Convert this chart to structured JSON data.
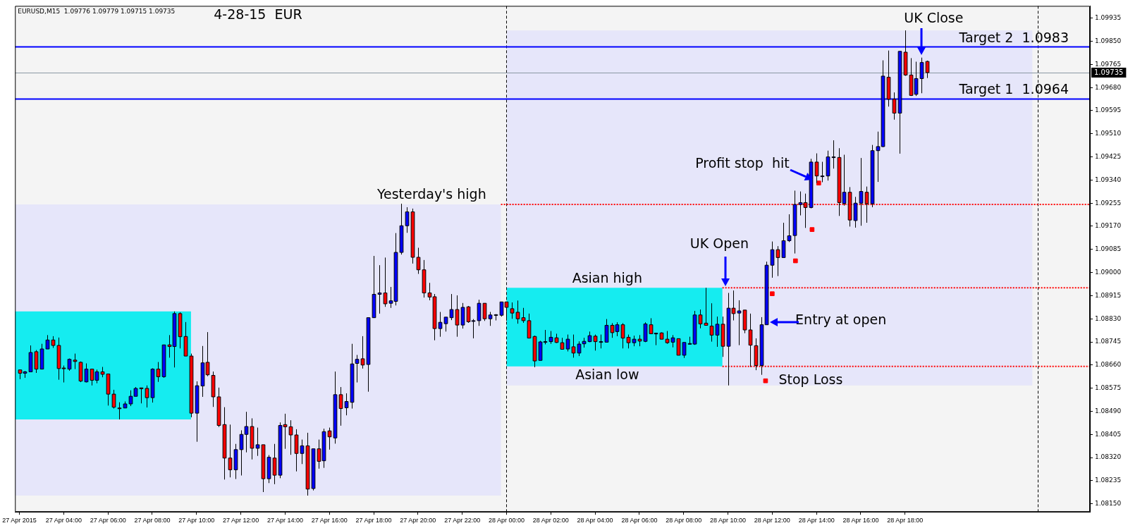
{
  "chart_data": {
    "type": "candlestick",
    "title": "4-28-15  EUR",
    "subtitle": "EURUSD,M15  1.09776 1.09779 1.09715 1.09735",
    "x": [
      "2015-04-27T02:00",
      "2015-04-27T02:15",
      "2015-04-27T02:30",
      "2015-04-27T02:45",
      "2015-04-27T03:00",
      "2015-04-27T03:15",
      "2015-04-27T03:30",
      "2015-04-27T03:45",
      "2015-04-27T04:00",
      "2015-04-27T04:15",
      "2015-04-27T04:30",
      "2015-04-27T04:45",
      "2015-04-27T05:00",
      "2015-04-27T05:15",
      "2015-04-27T05:30",
      "2015-04-27T05:45",
      "2015-04-27T06:00",
      "2015-04-27T06:15",
      "2015-04-27T06:30",
      "2015-04-27T06:45",
      "2015-04-27T07:00",
      "2015-04-27T07:15",
      "2015-04-27T07:30",
      "2015-04-27T07:45",
      "2015-04-27T08:00",
      "2015-04-27T08:15",
      "2015-04-27T08:30",
      "2015-04-27T08:45",
      "2015-04-27T09:00",
      "2015-04-27T09:15",
      "2015-04-27T09:30",
      "2015-04-27T09:45",
      "2015-04-27T10:00",
      "2015-04-27T10:15",
      "2015-04-27T10:30",
      "2015-04-27T10:45",
      "2015-04-27T11:00",
      "2015-04-27T11:15",
      "2015-04-27T11:30",
      "2015-04-27T11:45",
      "2015-04-27T12:00",
      "2015-04-27T12:15",
      "2015-04-27T12:30",
      "2015-04-27T12:45",
      "2015-04-27T13:00",
      "2015-04-27T13:15",
      "2015-04-27T13:30",
      "2015-04-27T13:45",
      "2015-04-27T14:00",
      "2015-04-27T14:15",
      "2015-04-27T14:30",
      "2015-04-27T14:45",
      "2015-04-27T15:00",
      "2015-04-27T15:15",
      "2015-04-27T15:30",
      "2015-04-27T15:45",
      "2015-04-27T16:00",
      "2015-04-27T16:15",
      "2015-04-27T16:30",
      "2015-04-27T16:45",
      "2015-04-27T17:00",
      "2015-04-27T17:15",
      "2015-04-27T17:30",
      "2015-04-27T17:45",
      "2015-04-27T18:00",
      "2015-04-27T18:15",
      "2015-04-27T18:30",
      "2015-04-27T18:45",
      "2015-04-27T19:00",
      "2015-04-27T19:15",
      "2015-04-27T19:30",
      "2015-04-27T19:45",
      "2015-04-27T20:00",
      "2015-04-27T20:15",
      "2015-04-27T20:30",
      "2015-04-27T20:45",
      "2015-04-27T21:00",
      "2015-04-27T21:15",
      "2015-04-27T21:30",
      "2015-04-27T21:45",
      "2015-04-27T22:00",
      "2015-04-27T22:15",
      "2015-04-27T22:30",
      "2015-04-27T22:45",
      "2015-04-27T23:00",
      "2015-04-27T23:15",
      "2015-04-27T23:30",
      "2015-04-27T23:45",
      "2015-04-28T00:00",
      "2015-04-28T00:15",
      "2015-04-28T00:30",
      "2015-04-28T00:45",
      "2015-04-28T01:00",
      "2015-04-28T01:15",
      "2015-04-28T01:30",
      "2015-04-28T01:45",
      "2015-04-28T02:00",
      "2015-04-28T02:15",
      "2015-04-28T02:30",
      "2015-04-28T02:45",
      "2015-04-28T03:00",
      "2015-04-28T03:15",
      "2015-04-28T03:30",
      "2015-04-28T03:45",
      "2015-04-28T04:00",
      "2015-04-28T04:15",
      "2015-04-28T04:30",
      "2015-04-28T04:45",
      "2015-04-28T05:00",
      "2015-04-28T05:15",
      "2015-04-28T05:30",
      "2015-04-28T05:45",
      "2015-04-28T06:00",
      "2015-04-28T06:15",
      "2015-04-28T06:30",
      "2015-04-28T06:45",
      "2015-04-28T07:00",
      "2015-04-28T07:15",
      "2015-04-28T07:30",
      "2015-04-28T07:45",
      "2015-04-28T08:00",
      "2015-04-28T08:15",
      "2015-04-28T08:30",
      "2015-04-28T08:45",
      "2015-04-28T09:00",
      "2015-04-28T09:15",
      "2015-04-28T09:30",
      "2015-04-28T09:45",
      "2015-04-28T10:00",
      "2015-04-28T10:15",
      "2015-04-28T10:30",
      "2015-04-28T10:45",
      "2015-04-28T11:00",
      "2015-04-28T11:15",
      "2015-04-28T11:30",
      "2015-04-28T11:45",
      "2015-04-28T12:00",
      "2015-04-28T12:15",
      "2015-04-28T12:30",
      "2015-04-28T12:45",
      "2015-04-28T13:00",
      "2015-04-28T13:15",
      "2015-04-28T13:30",
      "2015-04-28T13:45",
      "2015-04-28T14:00",
      "2015-04-28T14:15",
      "2015-04-28T14:30",
      "2015-04-28T14:45",
      "2015-04-28T15:00",
      "2015-04-28T15:15",
      "2015-04-28T15:30",
      "2015-04-28T15:45",
      "2015-04-28T16:00",
      "2015-04-28T16:15",
      "2015-04-28T16:30",
      "2015-04-28T16:45",
      "2015-04-28T17:00",
      "2015-04-28T17:15",
      "2015-04-28T17:30",
      "2015-04-28T17:45",
      "2015-04-28T18:00",
      "2015-04-28T18:15",
      "2015-04-28T18:30",
      "2015-04-28T18:45",
      "2015-04-28T19:00"
    ],
    "ohlc": [
      [
        1.08642,
        1.08642,
        1.08608,
        1.0863
      ],
      [
        1.0863,
        1.08638,
        1.08613,
        1.08635
      ],
      [
        1.08635,
        1.08732,
        1.08635,
        1.08706
      ],
      [
        1.08709,
        1.08715,
        1.08631,
        1.08645
      ],
      [
        1.08645,
        1.08738,
        1.08645,
        1.08719
      ],
      [
        1.08719,
        1.0877,
        1.08719,
        1.08752
      ],
      [
        1.08752,
        1.08766,
        1.08723,
        1.08732
      ],
      [
        1.08732,
        1.08761,
        1.08606,
        1.08647
      ],
      [
        1.08649,
        1.08658,
        1.08596,
        1.08647
      ],
      [
        1.08645,
        1.08684,
        1.08639,
        1.08681
      ],
      [
        1.08678,
        1.08702,
        1.08645,
        1.08673
      ],
      [
        1.0867,
        1.08673,
        1.08597,
        1.08601
      ],
      [
        1.08598,
        1.08666,
        1.08596,
        1.08645
      ],
      [
        1.08645,
        1.08645,
        1.08585,
        1.08604
      ],
      [
        1.08604,
        1.08643,
        1.08593,
        1.08635
      ],
      [
        1.08635,
        1.08653,
        1.08615,
        1.08626
      ],
      [
        1.08627,
        1.08627,
        1.08511,
        1.08553
      ],
      [
        1.08553,
        1.08569,
        1.085,
        1.08505
      ],
      [
        1.08502,
        1.08523,
        1.0846,
        1.085
      ],
      [
        1.08502,
        1.08526,
        1.08502,
        1.08517
      ],
      [
        1.08517,
        1.08567,
        1.08509,
        1.08545
      ],
      [
        1.08545,
        1.08579,
        1.08545,
        1.08574
      ],
      [
        1.08576,
        1.08576,
        1.08519,
        1.08573
      ],
      [
        1.08574,
        1.08585,
        1.08504,
        1.0854
      ],
      [
        1.0854,
        1.08648,
        1.08522,
        1.08645
      ],
      [
        1.08645,
        1.08671,
        1.08598,
        1.08617
      ],
      [
        1.08617,
        1.08734,
        1.08613,
        1.08734
      ],
      [
        1.08734,
        1.0877,
        1.08687,
        1.08728
      ],
      [
        1.08728,
        1.08857,
        1.08651,
        1.08849
      ],
      [
        1.08849,
        1.08854,
        1.08721,
        1.08764
      ],
      [
        1.08765,
        1.08818,
        1.08693,
        1.08693
      ],
      [
        1.08693,
        1.08702,
        1.08468,
        1.08483
      ],
      [
        1.08483,
        1.086,
        1.08378,
        1.08584
      ],
      [
        1.08583,
        1.0873,
        1.08543,
        1.08668
      ],
      [
        1.0867,
        1.08781,
        1.08619,
        1.08624
      ],
      [
        1.08622,
        1.08636,
        1.08506,
        1.08543
      ],
      [
        1.08543,
        1.08577,
        1.08432,
        1.08438
      ],
      [
        1.08441,
        1.08505,
        1.08239,
        1.08318
      ],
      [
        1.08318,
        1.08441,
        1.08247,
        1.08275
      ],
      [
        1.08275,
        1.0837,
        1.08241,
        1.08349
      ],
      [
        1.08349,
        1.0842,
        1.08254,
        1.08405
      ],
      [
        1.08405,
        1.08488,
        1.08339,
        1.08434
      ],
      [
        1.08434,
        1.08464,
        1.08313,
        1.08354
      ],
      [
        1.08354,
        1.0843,
        1.08326,
        1.08367
      ],
      [
        1.08367,
        1.08367,
        1.08193,
        1.08242
      ],
      [
        1.08242,
        1.08329,
        1.08226,
        1.08321
      ],
      [
        1.08318,
        1.0837,
        1.08222,
        1.08255
      ],
      [
        1.08255,
        1.08449,
        1.08244,
        1.08438
      ],
      [
        1.08441,
        1.08481,
        1.08352,
        1.08433
      ],
      [
        1.08433,
        1.08457,
        1.0833,
        1.08403
      ],
      [
        1.08403,
        1.08424,
        1.08269,
        1.08335
      ],
      [
        1.08335,
        1.08386,
        1.08296,
        1.08363
      ],
      [
        1.08363,
        1.08411,
        1.0818,
        1.08204
      ],
      [
        1.08206,
        1.08352,
        1.08199,
        1.08352
      ],
      [
        1.08352,
        1.08386,
        1.08279,
        1.08306
      ],
      [
        1.08308,
        1.08426,
        1.08282,
        1.08415
      ],
      [
        1.08418,
        1.0843,
        1.08349,
        1.08396
      ],
      [
        1.08392,
        1.08636,
        1.08371,
        1.08551
      ],
      [
        1.08551,
        1.08579,
        1.08437,
        1.085
      ],
      [
        1.08503,
        1.08556,
        1.08475,
        1.08526
      ],
      [
        1.08523,
        1.08738,
        1.085,
        1.08664
      ],
      [
        1.08666,
        1.08697,
        1.08596,
        1.08681
      ],
      [
        1.08683,
        1.08766,
        1.08647,
        1.0866
      ],
      [
        1.08662,
        1.08834,
        1.08562,
        1.08834
      ],
      [
        1.08834,
        1.09061,
        1.08834,
        1.0892
      ],
      [
        1.0892,
        1.09027,
        1.08849,
        1.08925
      ],
      [
        1.08925,
        1.09055,
        1.08874,
        1.08885
      ],
      [
        1.08887,
        1.08947,
        1.0887,
        1.08896
      ],
      [
        1.08894,
        1.09145,
        1.08879,
        1.09074
      ],
      [
        1.09074,
        1.09253,
        1.09066,
        1.09172
      ],
      [
        1.09172,
        1.0924,
        1.09146,
        1.09223
      ],
      [
        1.09223,
        1.09235,
        1.09033,
        1.09056
      ],
      [
        1.09056,
        1.09091,
        1.08995,
        1.0901
      ],
      [
        1.0901,
        1.09046,
        1.08908,
        1.08925
      ],
      [
        1.08925,
        1.08962,
        1.08898,
        1.0891
      ],
      [
        1.08911,
        1.08921,
        1.08751,
        1.08794
      ],
      [
        1.08794,
        1.08855,
        1.08764,
        1.08817
      ],
      [
        1.08812,
        1.08836,
        1.08783,
        1.08836
      ],
      [
        1.08834,
        1.08921,
        1.08825,
        1.08864
      ],
      [
        1.08864,
        1.08916,
        1.08764,
        1.08807
      ],
      [
        1.08807,
        1.08888,
        1.08794,
        1.08872
      ],
      [
        1.08874,
        1.08877,
        1.08815,
        1.08819
      ],
      [
        1.08823,
        1.08829,
        1.08758,
        1.08823
      ],
      [
        1.08823,
        1.089,
        1.08804,
        1.08887
      ],
      [
        1.08887,
        1.08887,
        1.08822,
        1.0883
      ],
      [
        1.0883,
        1.08855,
        1.08804,
        1.08844
      ],
      [
        1.08845,
        1.08847,
        1.08824,
        1.08845
      ],
      [
        1.08843,
        1.08892,
        1.08838,
        1.08892
      ],
      [
        1.08892,
        1.08892,
        1.08823,
        1.08872
      ],
      [
        1.08867,
        1.0889,
        1.0883,
        1.08851
      ],
      [
        1.08854,
        1.08897,
        1.08812,
        1.0883
      ],
      [
        1.08834,
        1.0887,
        1.08815,
        1.08823
      ],
      [
        1.08823,
        1.08849,
        1.08759,
        1.08759
      ],
      [
        1.08765,
        1.08768,
        1.08652,
        1.08675
      ],
      [
        1.08677,
        1.08749,
        1.08677,
        1.08745
      ],
      [
        1.08746,
        1.08789,
        1.08736,
        1.08746
      ],
      [
        1.08746,
        1.08785,
        1.08738,
        1.08762
      ],
      [
        1.0876,
        1.08775,
        1.08741,
        1.08743
      ],
      [
        1.08742,
        1.0876,
        1.08718,
        1.08718
      ],
      [
        1.08719,
        1.08772,
        1.0871,
        1.08755
      ],
      [
        1.08727,
        1.08772,
        1.08687,
        1.08704
      ],
      [
        1.08704,
        1.08747,
        1.08693,
        1.08737
      ],
      [
        1.08738,
        1.0876,
        1.08724,
        1.08747
      ],
      [
        1.08746,
        1.08783,
        1.08744,
        1.08768
      ],
      [
        1.08766,
        1.08772,
        1.08713,
        1.08746
      ],
      [
        1.08746,
        1.08772,
        1.08721,
        1.08746
      ],
      [
        1.08744,
        1.08829,
        1.08744,
        1.08806
      ],
      [
        1.08806,
        1.08814,
        1.0876,
        1.08779
      ],
      [
        1.08783,
        1.08817,
        1.08766,
        1.08808
      ],
      [
        1.08808,
        1.08814,
        1.08721,
        1.08759
      ],
      [
        1.08762,
        1.08772,
        1.08721,
        1.08742
      ],
      [
        1.08742,
        1.08768,
        1.08729,
        1.08755
      ],
      [
        1.08755,
        1.0877,
        1.08729,
        1.08748
      ],
      [
        1.08747,
        1.08817,
        1.08744,
        1.08811
      ],
      [
        1.08808,
        1.08832,
        1.08775,
        1.08775
      ],
      [
        1.08777,
        1.08777,
        1.08733,
        1.08777
      ],
      [
        1.08778,
        1.0878,
        1.08755,
        1.08755
      ],
      [
        1.08755,
        1.08785,
        1.08738,
        1.08742
      ],
      [
        1.08744,
        1.0877,
        1.08725,
        1.0876
      ],
      [
        1.08757,
        1.08757,
        1.08696,
        1.08696
      ],
      [
        1.08696,
        1.08743,
        1.08686,
        1.08743
      ],
      [
        1.08739,
        1.08764,
        1.08736,
        1.08739
      ],
      [
        1.08737,
        1.08859,
        1.08734,
        1.08844
      ],
      [
        1.08844,
        1.08864,
        1.08795,
        1.08811
      ],
      [
        1.08814,
        1.08944,
        1.08806,
        1.08806
      ],
      [
        1.08803,
        1.08887,
        1.08746,
        1.0877
      ],
      [
        1.0877,
        1.08838,
        1.08727,
        1.0881
      ],
      [
        1.0881,
        1.08838,
        1.0869,
        1.08729
      ],
      [
        1.08729,
        1.08925,
        1.08585,
        1.08869
      ],
      [
        1.08869,
        1.08934,
        1.08824,
        1.08849
      ],
      [
        1.08851,
        1.08898,
        1.08733,
        1.08859
      ],
      [
        1.08862,
        1.08862,
        1.08777,
        1.08789
      ],
      [
        1.08789,
        1.08849,
        1.08653,
        1.08733
      ],
      [
        1.08731,
        1.08758,
        1.08641,
        1.08658
      ],
      [
        1.08658,
        1.08836,
        1.08624,
        1.08808
      ],
      [
        1.08808,
        1.0904,
        1.08808,
        1.09027
      ],
      [
        1.09027,
        1.09114,
        1.08981,
        1.09084
      ],
      [
        1.09084,
        1.09097,
        1.08987,
        1.09055
      ],
      [
        1.09055,
        1.09183,
        1.09055,
        1.09117
      ],
      [
        1.09117,
        1.09214,
        1.09112,
        1.09135
      ],
      [
        1.09136,
        1.09301,
        1.0907,
        1.0925
      ],
      [
        1.0925,
        1.09298,
        1.0921,
        1.09257
      ],
      [
        1.09257,
        1.0929,
        1.09164,
        1.09239
      ],
      [
        1.09239,
        1.09418,
        1.09236,
        1.09406
      ],
      [
        1.09406,
        1.09438,
        1.09329,
        1.09355
      ],
      [
        1.09355,
        1.09407,
        1.09332,
        1.09355
      ],
      [
        1.09355,
        1.09448,
        1.09338,
        1.09425
      ],
      [
        1.09425,
        1.09486,
        1.09382,
        1.09425
      ],
      [
        1.09423,
        1.09457,
        1.09208,
        1.09257
      ],
      [
        1.09254,
        1.09433,
        1.09246,
        1.09295
      ],
      [
        1.09295,
        1.09314,
        1.09169,
        1.09193
      ],
      [
        1.09191,
        1.09278,
        1.09165,
        1.09255
      ],
      [
        1.09255,
        1.09421,
        1.09172,
        1.09298
      ],
      [
        1.09295,
        1.09316,
        1.09183,
        1.09253
      ],
      [
        1.09253,
        1.09469,
        1.0924,
        1.09448
      ],
      [
        1.09448,
        1.09518,
        1.09333,
        1.09463
      ],
      [
        1.09463,
        1.0978,
        1.09461,
        1.09722
      ],
      [
        1.09718,
        1.09816,
        1.0961,
        1.09637
      ],
      [
        1.09637,
        1.09662,
        1.09562,
        1.09586
      ],
      [
        1.09586,
        1.09813,
        1.09437,
        1.09813
      ],
      [
        1.0981,
        1.0989,
        1.09723,
        1.09726
      ],
      [
        1.09726,
        1.09788,
        1.09649,
        1.09651
      ],
      [
        1.09655,
        1.09775,
        1.09649,
        1.09713
      ],
      [
        1.09713,
        1.0979,
        1.09659,
        1.09772
      ],
      [
        1.09776,
        1.09779,
        1.09715,
        1.09735
      ]
    ],
    "colors": [
      "#ff0000",
      "#0000ff",
      "#0000ff",
      "#ff0000",
      "#0000ff",
      "#0000ff",
      "#ff0000",
      "#ff0000",
      "#ff0000",
      "#0000ff",
      "#ff0000",
      "#ff0000",
      "#0000ff",
      "#ff0000",
      "#0000ff",
      "#ff0000",
      "#ff0000",
      "#ff0000",
      "#ff0000",
      "#0000ff",
      "#0000ff",
      "#0000ff",
      "#ff0000",
      "#ff0000",
      "#0000ff",
      "#ff0000",
      "#0000ff",
      "#ff0000",
      "#0000ff",
      "#ff0000",
      "#ff0000",
      "#ff0000",
      "#0000ff",
      "#0000ff",
      "#ff0000",
      "#ff0000",
      "#ff0000",
      "#ff0000",
      "#ff0000",
      "#0000ff",
      "#0000ff",
      "#0000ff",
      "#ff0000",
      "#0000ff",
      "#ff0000",
      "#0000ff",
      "#ff0000",
      "#0000ff",
      "#ff0000",
      "#ff0000",
      "#ff0000",
      "#0000ff",
      "#ff0000",
      "#0000ff",
      "#ff0000",
      "#0000ff",
      "#ff0000",
      "#0000ff",
      "#ff0000",
      "#0000ff",
      "#0000ff",
      "#0000ff",
      "#ff0000",
      "#0000ff",
      "#0000ff",
      "#0000ff",
      "#ff0000",
      "#0000ff",
      "#0000ff",
      "#0000ff",
      "#0000ff",
      "#ff0000",
      "#ff0000",
      "#ff0000",
      "#ff0000",
      "#ff0000",
      "#0000ff",
      "#0000ff",
      "#0000ff",
      "#ff0000",
      "#0000ff",
      "#ff0000",
      "#0000ff",
      "#0000ff",
      "#ff0000",
      "#0000ff",
      "#0000ff",
      "#0000ff",
      "#ff0000",
      "#ff0000",
      "#ff0000",
      "#ff0000",
      "#ff0000",
      "#ff0000",
      "#0000ff",
      "#0000ff",
      "#0000ff",
      "#ff0000",
      "#ff0000",
      "#0000ff",
      "#ff0000",
      "#0000ff",
      "#0000ff",
      "#0000ff",
      "#ff0000",
      "#0000ff",
      "#0000ff",
      "#ff0000",
      "#0000ff",
      "#ff0000",
      "#ff0000",
      "#0000ff",
      "#ff0000",
      "#0000ff",
      "#ff0000",
      "#0000ff",
      "#ff0000",
      "#ff0000",
      "#0000ff",
      "#ff0000",
      "#0000ff",
      "#0000ff",
      "#0000ff",
      "#ff0000",
      "#ff0000",
      "#ff0000",
      "#0000ff",
      "#ff0000",
      "#0000ff",
      "#ff0000",
      "#0000ff",
      "#ff0000",
      "#ff0000",
      "#ff0000",
      "#0000ff",
      "#0000ff",
      "#0000ff",
      "#ff0000",
      "#0000ff",
      "#0000ff",
      "#0000ff",
      "#0000ff",
      "#ff0000",
      "#0000ff",
      "#ff0000",
      "#0000ff",
      "#0000ff",
      "#0000ff",
      "#ff0000",
      "#0000ff",
      "#ff0000",
      "#0000ff",
      "#0000ff",
      "#ff0000",
      "#0000ff",
      "#0000ff",
      "#0000ff",
      "#ff0000",
      "#ff0000",
      "#0000ff",
      "#ff0000",
      "#ff0000",
      "#0000ff",
      "#0000ff",
      "#ff0000"
    ],
    "series": [
      {
        "type": "scatter",
        "x": [
          "2015-04-28T11:42",
          "2015-04-28T12:00",
          "2015-04-28T13:03",
          "2015-04-28T13:48",
          "2015-04-28T14:06"
        ],
        "values": [
          1.08602,
          1.08922,
          1.09043,
          1.09158,
          1.09329
        ],
        "color": "#ff0000",
        "marker": "square"
      },
      {
        "type": "line",
        "x": [
          "2015-04-27T23:45",
          "2015-04-29T02:21"
        ],
        "values": [
          1.0925,
          1.0925
        ],
        "color": "#ff0000",
        "line_style": "dotted",
        "marker": "none"
      },
      {
        "type": "line",
        "x": [
          "2015-04-28T09:45",
          "2015-04-29T02:21"
        ],
        "values": [
          1.08944,
          1.08944
        ],
        "color": "#ff0000",
        "line_style": "dotted",
        "marker": "none"
      },
      {
        "type": "line",
        "x": [
          "2015-04-28T09:45",
          "2015-04-29T02:21"
        ],
        "values": [
          1.08655,
          1.08655
        ],
        "color": "#ff0000",
        "line_style": "dotted",
        "marker": "none"
      },
      {
        "type": "line",
        "x": [
          "2015-04-27T01:48",
          "2015-04-27T23:45"
        ],
        "values": [
          null,
          null
        ],
        "lower": [
          1.0818,
          1.0818
        ],
        "upper": [
          1.0925,
          1.0925
        ],
        "color": "#e6e6fa"
      },
      {
        "type": "line",
        "x": [
          "2015-04-28T00:00",
          "2015-04-28T23:45"
        ],
        "values": [
          null,
          null
        ],
        "lower": [
          1.08585,
          1.08585
        ],
        "upper": [
          1.0989,
          1.0989
        ],
        "color": "#e6e6fa"
      },
      {
        "type": "line",
        "x": [
          "2015-04-27T01:48",
          "2015-04-27T09:45"
        ],
        "values": [
          null,
          null
        ],
        "lower": [
          1.0846,
          1.0846
        ],
        "upper": [
          1.08857,
          1.08857
        ],
        "color": "#15ecf0"
      },
      {
        "type": "line",
        "x": [
          "2015-04-28T00:00",
          "2015-04-28T09:45"
        ],
        "values": [
          null,
          null
        ],
        "lower": [
          1.08655,
          1.08655
        ],
        "upper": [
          1.08944,
          1.08944
        ],
        "color": "#15ecf0"
      }
    ],
    "xlim": [
      "2015-04-27T01:48",
      "2015-04-29T02:21"
    ],
    "ylim": [
      1.0812,
      1.0998
    ],
    "xticks": [
      {
        "value": "2015-04-27T02:00",
        "label": "27 Apr 2015"
      },
      {
        "value": "2015-04-27T04:00",
        "label": "27 Apr 04:00"
      },
      {
        "value": "2015-04-27T06:00",
        "label": "27 Apr 06:00"
      },
      {
        "value": "2015-04-27T08:00",
        "label": "27 Apr 08:00"
      },
      {
        "value": "2015-04-27T10:00",
        "label": "27 Apr 10:00"
      },
      {
        "value": "2015-04-27T12:00",
        "label": "27 Apr 12:00"
      },
      {
        "value": "2015-04-27T14:00",
        "label": "27 Apr 14:00"
      },
      {
        "value": "2015-04-27T16:00",
        "label": "27 Apr 16:00"
      },
      {
        "value": "2015-04-27T18:00",
        "label": "27 Apr 18:00"
      },
      {
        "value": "2015-04-27T20:00",
        "label": "27 Apr 20:00"
      },
      {
        "value": "2015-04-27T22:00",
        "label": "27 Apr 22:00"
      },
      {
        "value": "2015-04-28T00:00",
        "label": "28 Apr 00:00"
      },
      {
        "value": "2015-04-28T02:00",
        "label": "28 Apr 02:00"
      },
      {
        "value": "2015-04-28T04:00",
        "label": "28 Apr 04:00"
      },
      {
        "value": "2015-04-28T06:00",
        "label": "28 Apr 06:00"
      },
      {
        "value": "2015-04-28T08:00",
        "label": "28 Apr 08:00"
      },
      {
        "value": "2015-04-28T10:00",
        "label": "28 Apr 10:00"
      },
      {
        "value": "2015-04-28T12:00",
        "label": "28 Apr 12:00"
      },
      {
        "value": "2015-04-28T14:00",
        "label": "28 Apr 14:00"
      },
      {
        "value": "2015-04-28T16:00",
        "label": "28 Apr 16:00"
      },
      {
        "value": "2015-04-28T18:00",
        "label": "28 Apr 18:00"
      }
    ],
    "yticks": [
      {
        "value": 1.0815,
        "label": "1.08150"
      },
      1.08235,
      {
        "value": 1.0832,
        "label": "1.08320"
      },
      1.08405,
      {
        "value": 1.0849,
        "label": "1.08490"
      },
      1.08575,
      {
        "value": 1.0866,
        "label": "1.08660"
      },
      1.08745,
      {
        "value": 1.0883,
        "label": "1.08830"
      },
      1.08915,
      {
        "value": 1.09,
        "label": "1.09000"
      },
      1.09085,
      {
        "value": 1.0917,
        "label": "1.09170"
      },
      1.09255,
      {
        "value": 1.0934,
        "label": "1.09340"
      },
      1.09425,
      {
        "value": 1.0951,
        "label": "1.09510"
      },
      1.09595,
      {
        "value": 1.0968,
        "label": "1.09680"
      },
      1.09765,
      {
        "value": 1.0985,
        "label": "1.09850"
      },
      1.09935
    ],
    "grid": false,
    "legend": false,
    "ref_lines": [
      {
        "axis": "x",
        "value": "2015-04-28T00:00",
        "color": "#000000",
        "line_style": "dashed"
      },
      {
        "axis": "x",
        "value": "2015-04-29T00:00",
        "color": "#000000",
        "line_style": "dashed"
      },
      {
        "axis": "y",
        "value": 1.0983,
        "label": "Target 2  1.0983",
        "color": "#0000ff",
        "line_style": "solid"
      },
      {
        "axis": "y",
        "value": 1.0964,
        "label": "Target 1  1.0964",
        "color": "#0000ff",
        "line_style": "solid"
      },
      {
        "axis": "y",
        "value": 1.09735,
        "label": "1.09735",
        "color": "#8a97a3",
        "line_style": "solid"
      }
    ],
    "annotations": [
      {
        "text": "UK Close",
        "x": "2015-04-28T18:45",
        "y": 1.098
      },
      {
        "text": "Profit stop  hit",
        "x": "2015-04-28T13:50",
        "y": 1.0934
      },
      {
        "text": "UK Open",
        "x": "2015-04-28T09:54",
        "y": 1.0895
      },
      {
        "text": "Entry at open",
        "x": "2015-04-28T11:53",
        "y": 1.08817
      },
      {
        "text": "Yesterday's high",
        "x": "2015-04-27T19:15",
        "y": 1.0925
      },
      {
        "text": "Asian high",
        "x": "2015-04-28T04:52",
        "y": 1.08944
      },
      {
        "text": "Asian low",
        "x": "2015-04-28T04:52",
        "y": 1.08655
      },
      {
        "text": "Stop Loss",
        "x": "2015-04-28T11:42",
        "y": 1.08602
      }
    ]
  }
}
